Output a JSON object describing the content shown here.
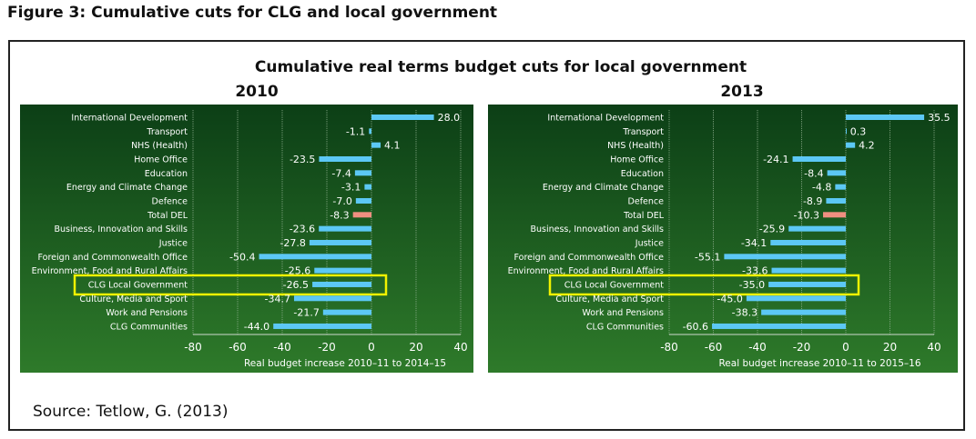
{
  "figure_title": "Figure 3: Cumulative cuts for CLG and local government",
  "source": "Source: Tetlow, G. (2013)",
  "colors": {
    "bar": "#5cc8f5",
    "total_bar": "#f08f80",
    "highlight": "#f2f200",
    "panel_top": "#0c3f16",
    "panel_bottom": "#2e7a2a"
  },
  "chart_data": [
    {
      "type": "bar",
      "orientation": "horizontal",
      "title": "Cumulative real terms budget cuts for local government",
      "subtitle": "2010",
      "xlabel": "Real budget increase 2010–11 to 2014–15",
      "xlim": [
        -80,
        40
      ],
      "xticks": [
        "-80",
        "-60",
        "-40",
        "-20",
        "0",
        "20",
        "40"
      ],
      "grid": true,
      "highlighted_category": "CLG Local Government",
      "categories": [
        "International Development",
        "Transport",
        "NHS (Health)",
        "Home Office",
        "Education",
        "Energy and Climate Change",
        "Defence",
        "Total DEL",
        "Business, Innovation and Skills",
        "Justice",
        "Foreign and Commonwealth Office",
        "Environment, Food and Rural Affairs",
        "CLG Local Government",
        "Culture, Media and Sport",
        "Work and Pensions",
        "CLG Communities"
      ],
      "values": [
        28.0,
        -1.1,
        4.1,
        -23.5,
        -7.4,
        -3.1,
        -7.0,
        -8.3,
        -23.6,
        -27.8,
        -50.4,
        -25.6,
        -26.5,
        -34.7,
        -21.7,
        -44.0
      ]
    },
    {
      "type": "bar",
      "orientation": "horizontal",
      "subtitle": "2013",
      "xlabel": "Real budget increase 2010–11 to 2015–16",
      "xlim": [
        -80,
        40
      ],
      "xticks": [
        "-80",
        "-60",
        "-40",
        "-20",
        "0",
        "20",
        "40"
      ],
      "grid": true,
      "highlighted_category": "CLG Local Government",
      "categories": [
        "International Development",
        "Transport",
        "NHS (Health)",
        "Home Office",
        "Education",
        "Energy and Climate Change",
        "Defence",
        "Total DEL",
        "Business, Innovation and Skills",
        "Justice",
        "Foreign and Commonwealth Office",
        "Environment, Food and Rural Affairs",
        "CLG Local Government",
        "Culture, Media and Sport",
        "Work and Pensions",
        "CLG Communities"
      ],
      "values": [
        35.5,
        0.3,
        4.2,
        -24.1,
        -8.4,
        -4.8,
        -8.9,
        -10.3,
        -25.9,
        -34.1,
        -55.1,
        -33.6,
        -35.0,
        -45.0,
        -38.3,
        -60.6
      ]
    }
  ]
}
